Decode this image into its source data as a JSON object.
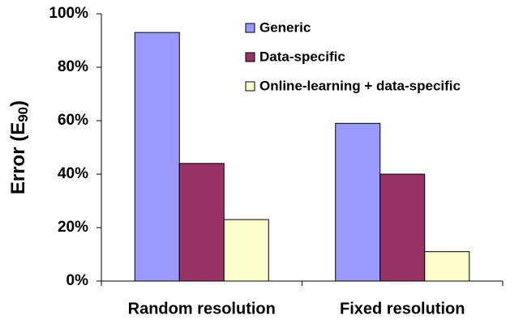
{
  "chart_data": {
    "type": "bar",
    "y_label": [
      "Error (E",
      "90",
      ")"
    ],
    "categories": [
      "Random resolution",
      "Fixed resolution"
    ],
    "series": [
      {
        "name": "Generic",
        "color": "#9999ff",
        "values": [
          93,
          59
        ]
      },
      {
        "name": "Data-specific",
        "color": "#993366",
        "values": [
          44,
          40
        ]
      },
      {
        "name": "Online-learning + data-specific",
        "color": "#ffffcc",
        "values": [
          23,
          11
        ]
      }
    ],
    "ylim": [
      0,
      100
    ],
    "yticks": [
      {
        "value": 0,
        "label": "0%"
      },
      {
        "value": 20,
        "label": "20%"
      },
      {
        "value": 40,
        "label": "40%"
      },
      {
        "value": 60,
        "label": "60%"
      },
      {
        "value": 80,
        "label": "80%"
      },
      {
        "value": 100,
        "label": "100%"
      }
    ],
    "legend": "top-right"
  }
}
